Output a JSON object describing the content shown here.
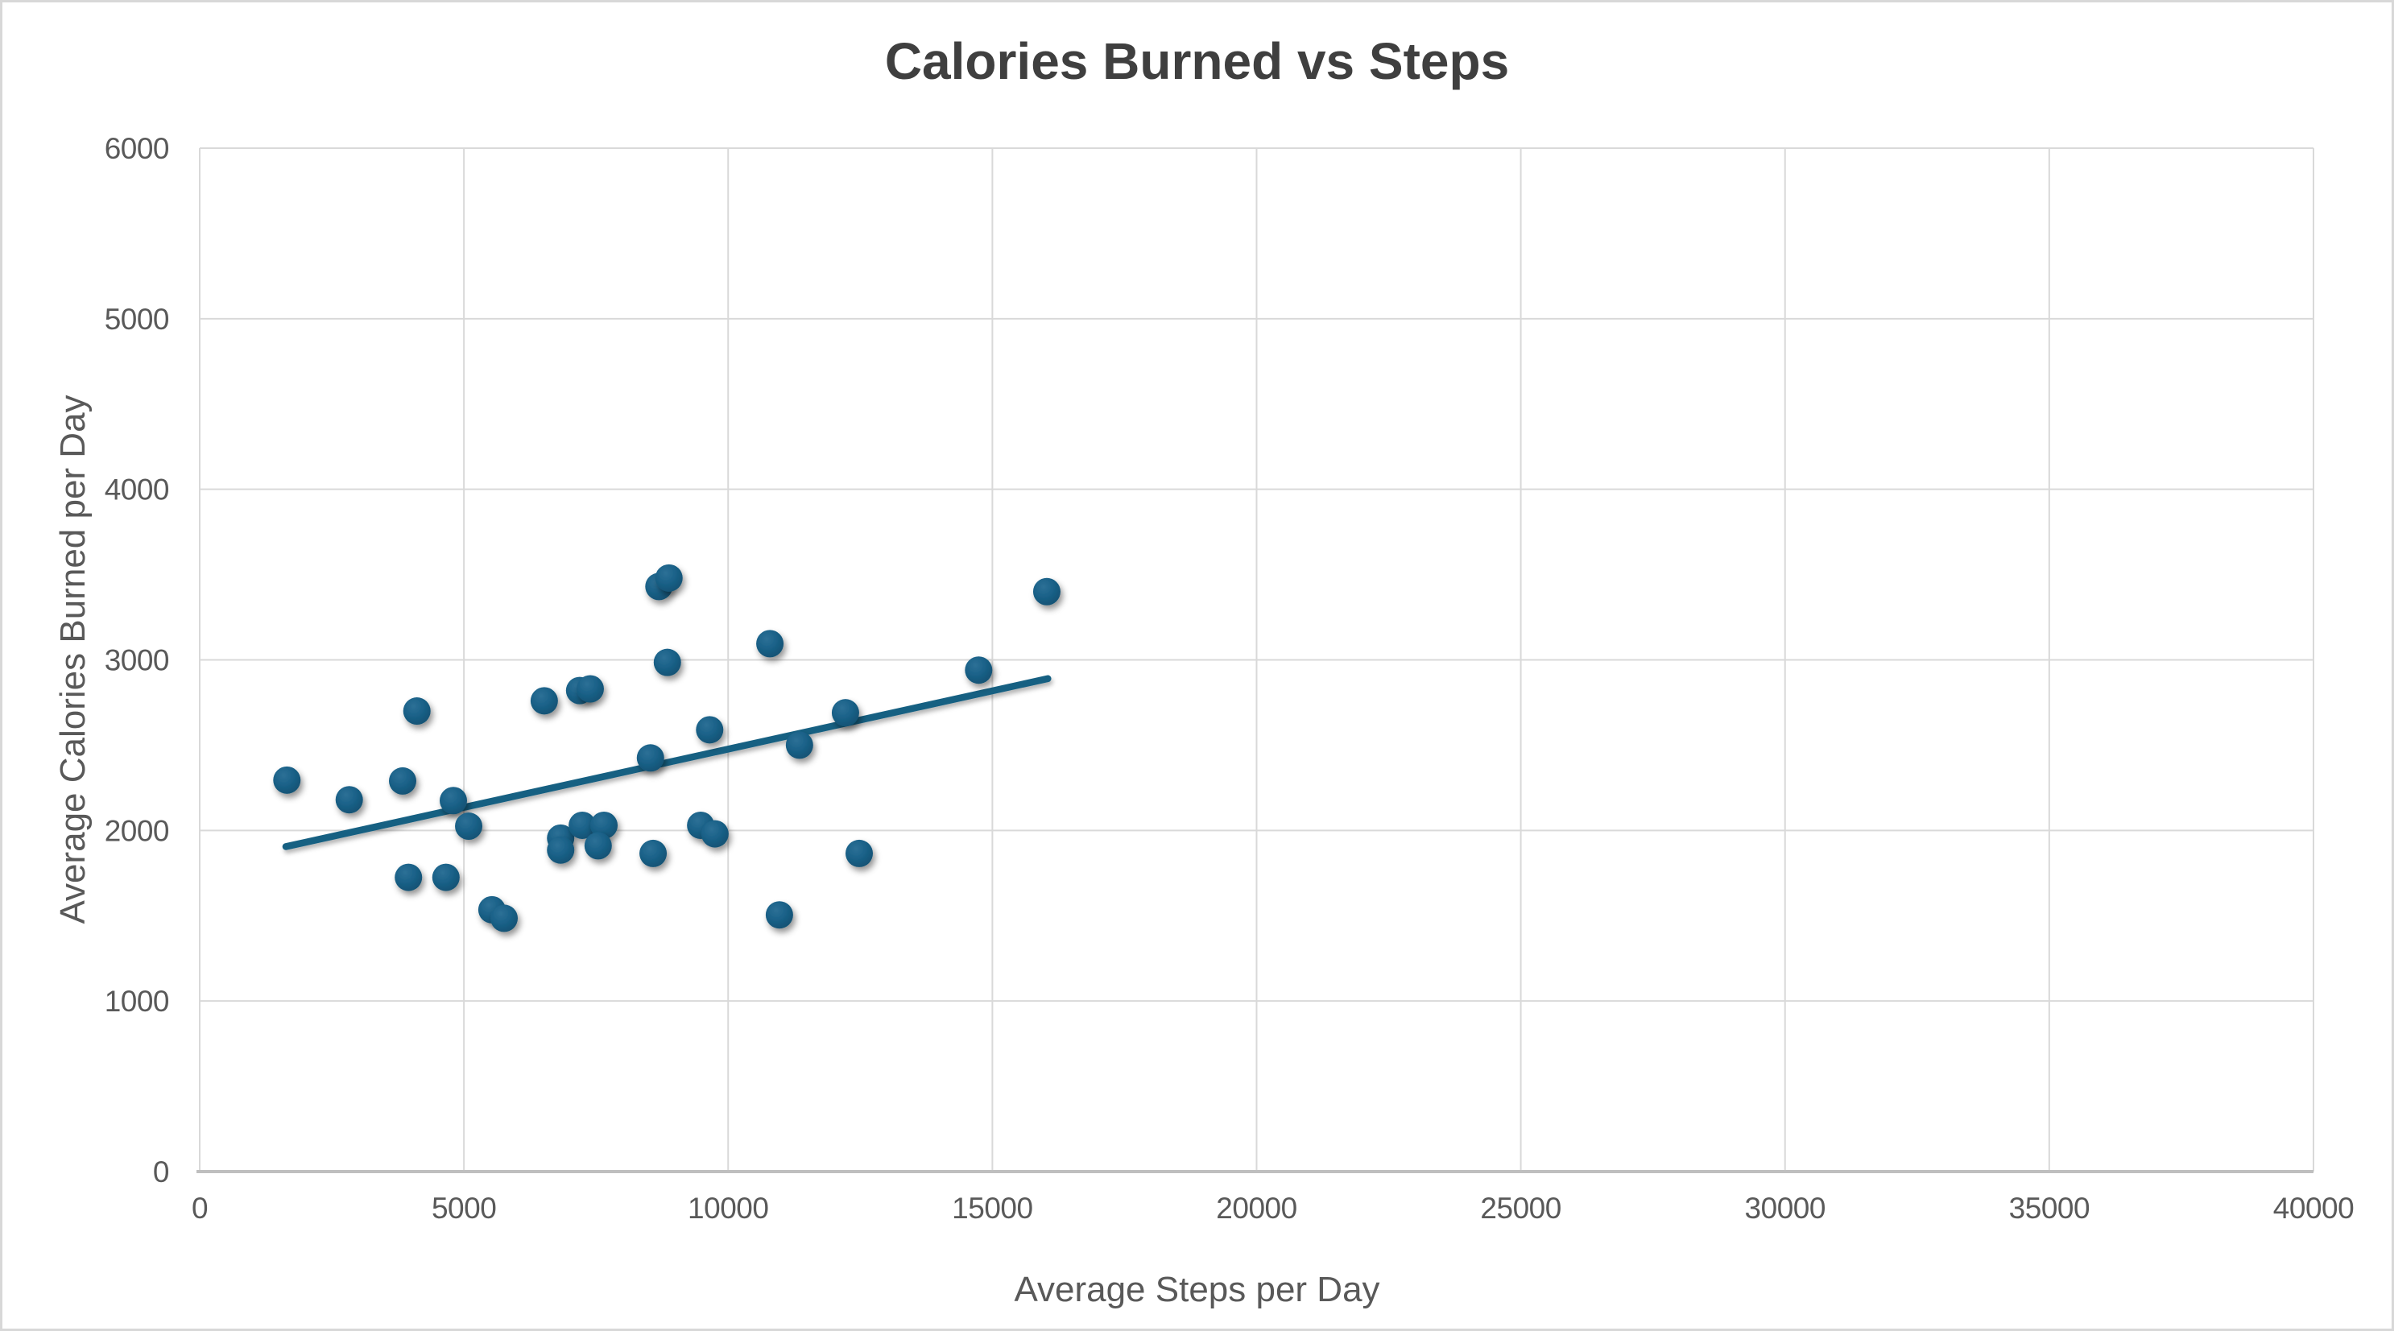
{
  "chart_data": {
    "type": "scatter",
    "title": "Calories Burned vs Steps",
    "xlabel": "Average Steps per Day",
    "ylabel": "Average Calories Burned per Day",
    "xlim": [
      0,
      40000
    ],
    "ylim": [
      0,
      6000
    ],
    "x_ticks": [
      0,
      5000,
      10000,
      15000,
      20000,
      25000,
      30000,
      35000,
      40000
    ],
    "y_ticks": [
      0,
      1000,
      2000,
      3000,
      4000,
      5000,
      6000
    ],
    "grid": true,
    "legend": "none",
    "points": [
      [
        1650,
        2295
      ],
      [
        2830,
        2180
      ],
      [
        3840,
        2290
      ],
      [
        4110,
        2700
      ],
      [
        3950,
        1725
      ],
      [
        4660,
        1725
      ],
      [
        4800,
        2175
      ],
      [
        5090,
        2025
      ],
      [
        5530,
        1535
      ],
      [
        5760,
        1485
      ],
      [
        6520,
        2760
      ],
      [
        6830,
        1955
      ],
      [
        6830,
        1885
      ],
      [
        7190,
        2820
      ],
      [
        7390,
        2830
      ],
      [
        7240,
        2030
      ],
      [
        7650,
        2030
      ],
      [
        7540,
        1910
      ],
      [
        8530,
        2425
      ],
      [
        8580,
        1865
      ],
      [
        8690,
        3430
      ],
      [
        8880,
        3480
      ],
      [
        8850,
        2985
      ],
      [
        9480,
        2030
      ],
      [
        9650,
        2590
      ],
      [
        9750,
        1980
      ],
      [
        10790,
        3095
      ],
      [
        10970,
        1505
      ],
      [
        11350,
        2500
      ],
      [
        12220,
        2690
      ],
      [
        12480,
        1865
      ],
      [
        14740,
        2940
      ],
      [
        16030,
        3400
      ]
    ],
    "trendline": {
      "x1": 1630,
      "y1": 1905,
      "x2": 16050,
      "y2": 2890
    },
    "colors": {
      "accent": "#156082",
      "marker_highlight": "#2d7096",
      "marker_mid": "#1b6289",
      "marker_edge": "#0f4f70",
      "gridline": "#d9d9d9",
      "axis_line": "#bfbfbf",
      "label": "#595959",
      "title": "#3f3f3f",
      "frame_border": "#d8d8d8",
      "background": "#ffffff"
    }
  }
}
